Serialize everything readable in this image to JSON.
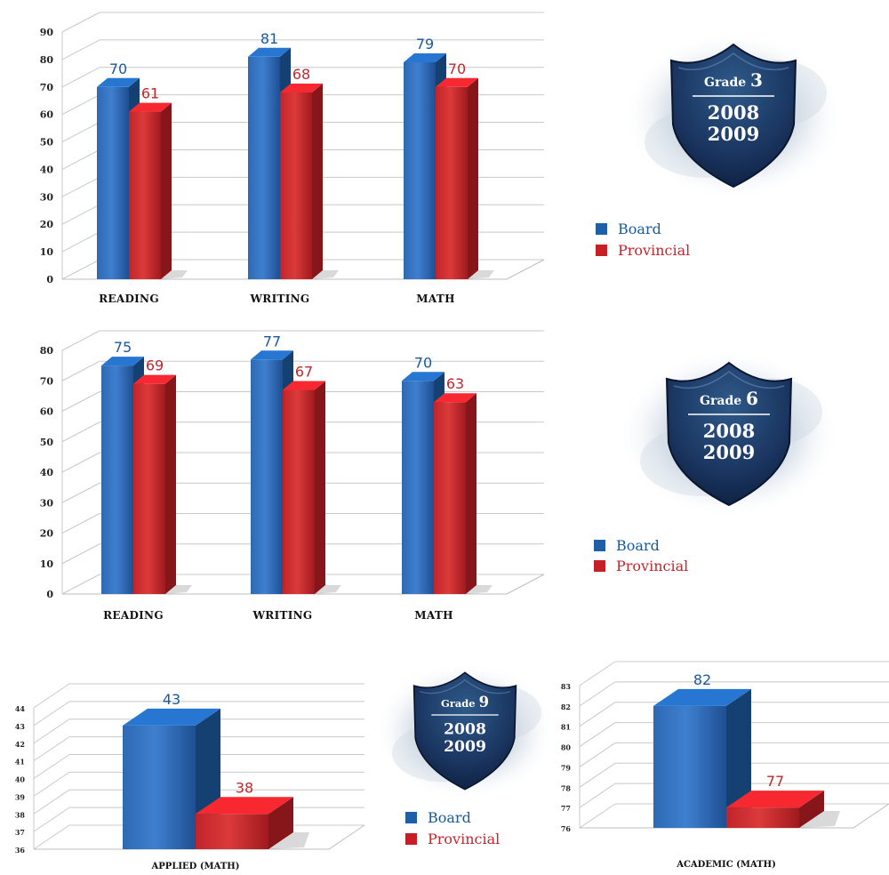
{
  "colors": {
    "board": "#1f5fa8",
    "provincial": "#c62026",
    "board_text": "#1a5a9c",
    "provincial_text": "#c1272d"
  },
  "legends": [
    {
      "board": "Board",
      "provincial": "Provincial"
    },
    {
      "board": "Board",
      "provincial": "Provincial"
    },
    {
      "board": "Board",
      "provincial": "Provincial"
    }
  ],
  "badges": [
    {
      "grade_word": "Grade",
      "grade_num": "3",
      "year1": "2008",
      "year2": "2009"
    },
    {
      "grade_word": "Grade",
      "grade_num": "6",
      "year1": "2008",
      "year2": "2009"
    },
    {
      "grade_word": "Grade",
      "grade_num": "9",
      "year1": "2008",
      "year2": "2009"
    }
  ],
  "chart_data": [
    {
      "type": "bar",
      "categories": [
        "READING",
        "WRITING",
        "MATH"
      ],
      "series": [
        {
          "name": "Board",
          "values": [
            70,
            81,
            79
          ]
        },
        {
          "name": "Provincial",
          "values": [
            61,
            68,
            70
          ]
        }
      ],
      "ylim": [
        0,
        90
      ],
      "yticks": [
        0,
        10,
        20,
        30,
        40,
        50,
        60,
        70,
        80,
        90
      ],
      "grid": true,
      "legend": "right"
    },
    {
      "type": "bar",
      "categories": [
        "READING",
        "WRITING",
        "MATH"
      ],
      "series": [
        {
          "name": "Board",
          "values": [
            75,
            77,
            70
          ]
        },
        {
          "name": "Provincial",
          "values": [
            69,
            67,
            63
          ]
        }
      ],
      "ylim": [
        0,
        80
      ],
      "yticks": [
        0,
        10,
        20,
        30,
        40,
        50,
        60,
        70,
        80
      ],
      "grid": true,
      "legend": "right"
    },
    {
      "type": "bar",
      "categories": [
        "APPLIED (MATH)"
      ],
      "series": [
        {
          "name": "Board",
          "values": [
            43
          ]
        },
        {
          "name": "Provincial",
          "values": [
            38
          ]
        }
      ],
      "ylim": [
        36,
        44
      ],
      "yticks": [
        36,
        37,
        38,
        39,
        40,
        41,
        42,
        43,
        44
      ],
      "grid": true,
      "legend": "right"
    },
    {
      "type": "bar",
      "categories": [
        "ACADEMIC (MATH)"
      ],
      "series": [
        {
          "name": "Board",
          "values": [
            82
          ]
        },
        {
          "name": "Provincial",
          "values": [
            77
          ]
        }
      ],
      "ylim": [
        76,
        83
      ],
      "yticks": [
        76,
        77,
        78,
        79,
        80,
        81,
        82,
        83
      ],
      "grid": true,
      "legend": "none"
    }
  ]
}
